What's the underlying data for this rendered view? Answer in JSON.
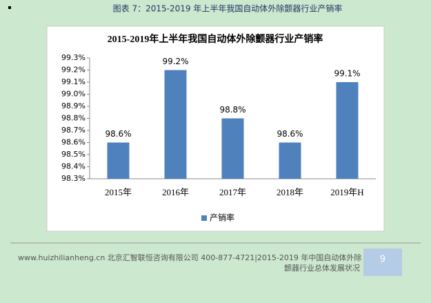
{
  "caption": "图表 7：2015-2019 年上半年我国自动体外除颤器行业产销率",
  "chart_data": {
    "type": "bar",
    "title": "2015-2019年上半年我国自动体外除颤器行业产销率",
    "categories": [
      "2015年",
      "2016年",
      "2017年",
      "2018年",
      "2019年H"
    ],
    "series": [
      {
        "name": "产销率",
        "color": "#4f81bd",
        "values": [
          98.6,
          99.2,
          98.8,
          98.6,
          99.1
        ],
        "value_labels": [
          "98.6%",
          "99.2%",
          "98.8%",
          "98.6%",
          "99.1%"
        ]
      }
    ],
    "ylim": [
      98.3,
      99.3
    ],
    "yticks": [
      {
        "value": 98.3,
        "label": "98.3%"
      },
      {
        "value": 98.4,
        "label": "98.4%"
      },
      {
        "value": 98.5,
        "label": "98.5%"
      },
      {
        "value": 98.6,
        "label": "98.6%"
      },
      {
        "value": 98.7,
        "label": "98.7%"
      },
      {
        "value": 98.8,
        "label": "98.8%"
      },
      {
        "value": 98.9,
        "label": "98.9%"
      },
      {
        "value": 99.0,
        "label": "99.0%"
      },
      {
        "value": 99.1,
        "label": "99.1%"
      },
      {
        "value": 99.2,
        "label": "99.2%"
      },
      {
        "value": 99.3,
        "label": "99.3%"
      }
    ],
    "grid": false,
    "legend": "bottom"
  },
  "footer": {
    "line1": "www.huizhilianheng.cn 北京汇智联恒咨询有限公司  400-877-4721|2015-2019 年中国自动体外除",
    "line2": "颤器行业总体发展状况",
    "page_number": "9"
  }
}
